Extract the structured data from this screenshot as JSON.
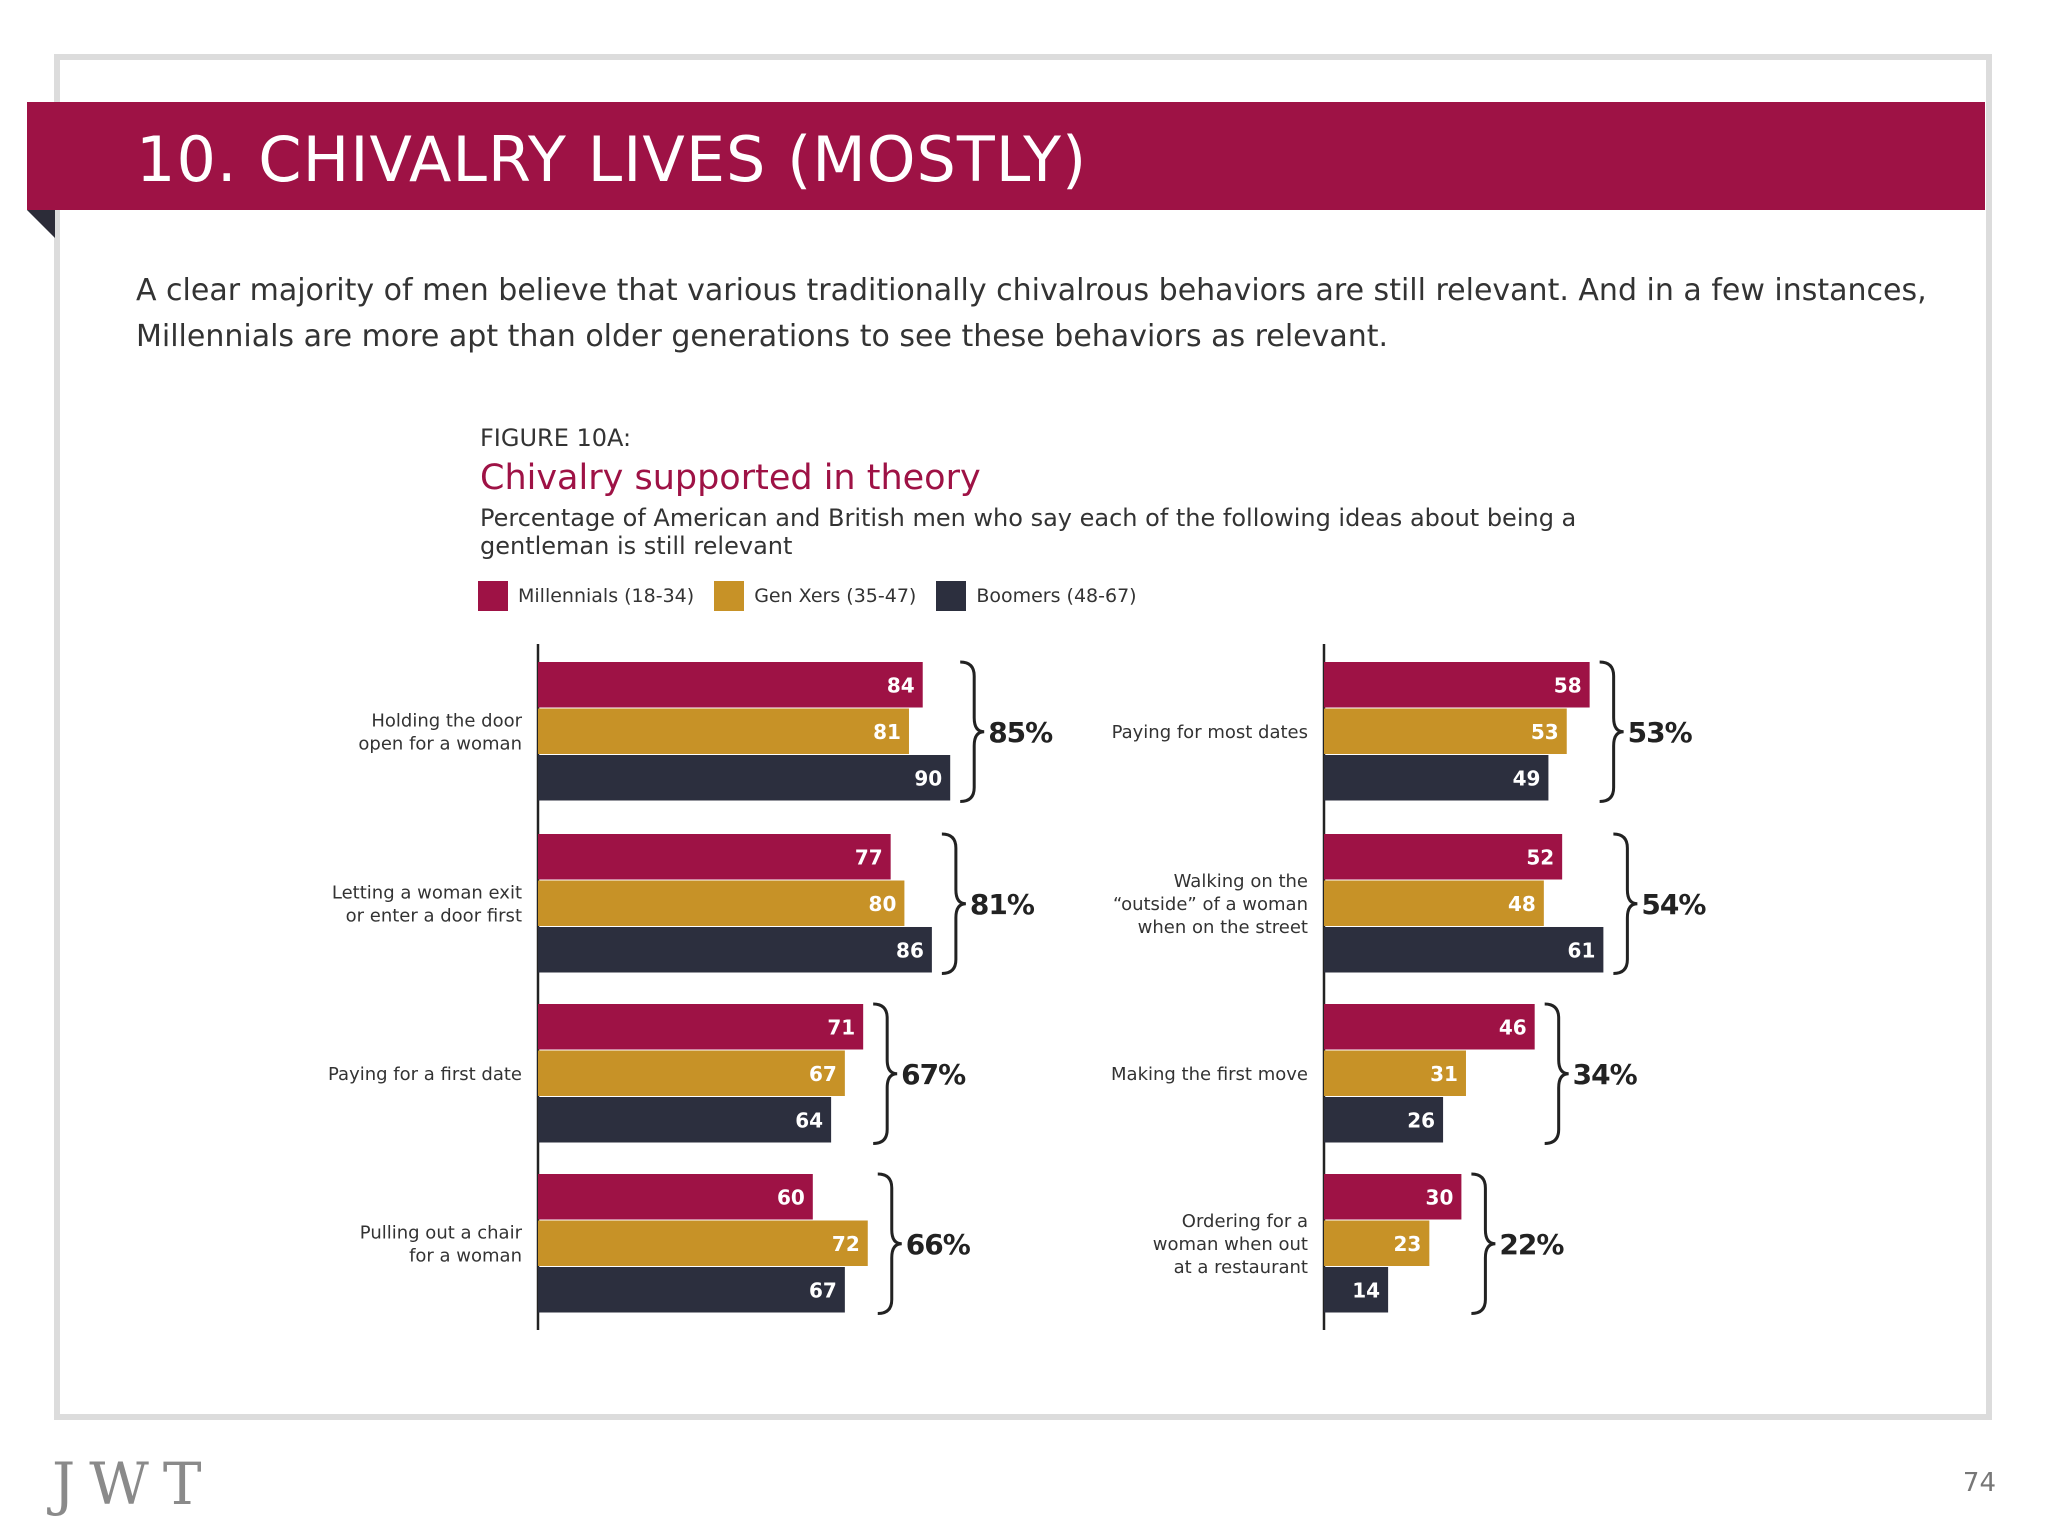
{
  "slide": {
    "title": "10. CHIVALRY LIVES (MOSTLY)",
    "intro": "A clear majority of men believe that various traditionally chivalrous behaviors are still relevant. And in a few instances, Millennials are more apt than older generations to see these behaviors as relevant.",
    "logo": "JWT",
    "page_number": "74"
  },
  "figure": {
    "label": "FIGURE 10A:",
    "title": "Chivalry supported in theory",
    "subtitle": "Percentage of American and British men who say each of the following ideas about being a gentleman is still relevant"
  },
  "colors": {
    "accent": "#9e1245",
    "millennials": "#9e1245",
    "genx": "#c79227",
    "boomers": "#2c2f3e"
  },
  "chart_data": {
    "type": "bar",
    "orientation": "horizontal",
    "series": [
      {
        "name": "Millennials (18-34)",
        "color": "#9e1245"
      },
      {
        "name": "Gen Xers (35-47)",
        "color": "#c79227"
      },
      {
        "name": "Boomers (48-67)",
        "color": "#2c2f3e"
      }
    ],
    "xlim": [
      0,
      100
    ],
    "legend_position": "top-left",
    "grid": false,
    "panels": [
      {
        "categories": [
          {
            "label": [
              "Holding the door",
              "open for a woman"
            ],
            "values": [
              84,
              81,
              90
            ],
            "total": "85%"
          },
          {
            "label": [
              "Letting a woman exit",
              "or enter a door first"
            ],
            "values": [
              77,
              80,
              86
            ],
            "total": "81%"
          },
          {
            "label": [
              "Paying for a first date"
            ],
            "values": [
              71,
              67,
              64
            ],
            "total": "67%"
          },
          {
            "label": [
              "Pulling out a chair",
              "for a woman"
            ],
            "values": [
              60,
              72,
              67
            ],
            "total": "66%"
          }
        ]
      },
      {
        "categories": [
          {
            "label": [
              "Paying for most dates"
            ],
            "values": [
              58,
              53,
              49
            ],
            "total": "53%"
          },
          {
            "label": [
              "Walking on the",
              "“outside” of a woman",
              "when on the street"
            ],
            "values": [
              52,
              48,
              61
            ],
            "total": "54%"
          },
          {
            "label": [
              "Making the first move"
            ],
            "values": [
              46,
              31,
              26
            ],
            "total": "34%"
          },
          {
            "label": [
              "Ordering for a",
              "woman when out",
              "at a restaurant"
            ],
            "values": [
              30,
              23,
              14
            ],
            "total": "22%"
          }
        ]
      }
    ]
  }
}
